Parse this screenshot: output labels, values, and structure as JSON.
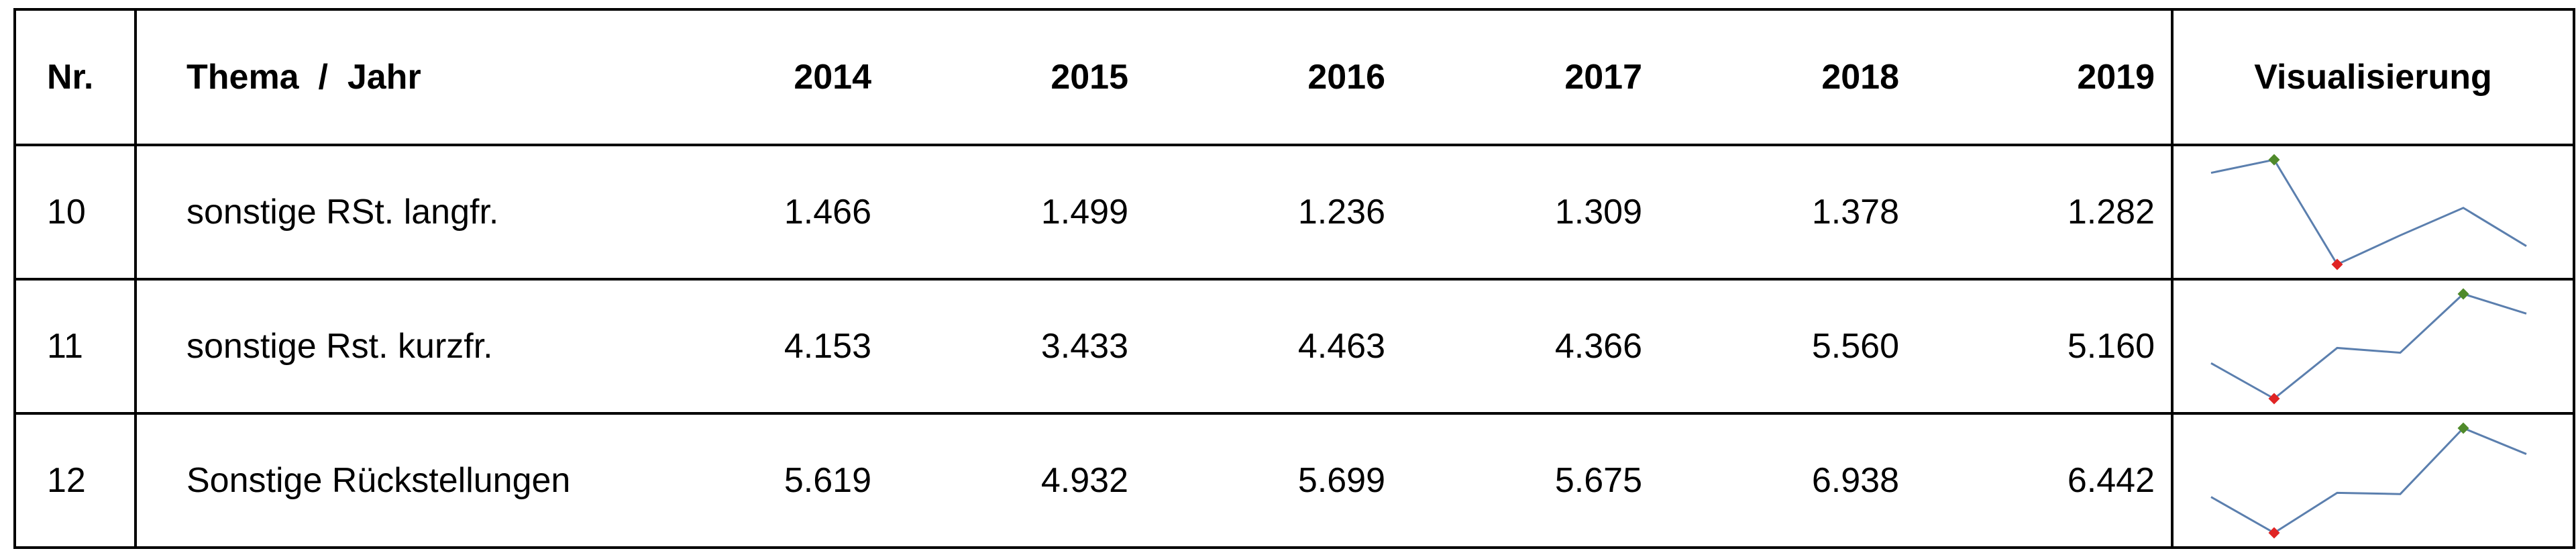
{
  "table": {
    "header": [
      "Nr.",
      "Thema  /  Jahr",
      "2014",
      "2015",
      "2016",
      "2017",
      "2018",
      "2019",
      "Visualisierung"
    ],
    "rows": [
      {
        "nr": "10",
        "topic": "sonstige RSt. langfr.",
        "values": [
          1466,
          1499,
          1236,
          1309,
          1378,
          1282
        ],
        "value_labels": [
          "1.466",
          "1.499",
          "1.236",
          "1.309",
          "1.378",
          "1.282"
        ]
      },
      {
        "nr": "11",
        "topic": "sonstige Rst. kurzfr.",
        "values": [
          4153,
          3433,
          4463,
          4366,
          5560,
          5160
        ],
        "value_labels": [
          "4.153",
          "3.433",
          "4.463",
          "4.366",
          "5.560",
          "5.160"
        ]
      },
      {
        "nr": "12",
        "topic": "Sonstige Rückstellungen",
        "values": [
          5619,
          4932,
          5699,
          5675,
          6938,
          6442
        ],
        "value_labels": [
          "5.619",
          "4.932",
          "5.699",
          "5.675",
          "6.938",
          "6.442"
        ]
      }
    ]
  },
  "sparkline": {
    "line_color": "#5b7fae",
    "high_color": "#4f8a2b",
    "low_color": "#e02424"
  }
}
